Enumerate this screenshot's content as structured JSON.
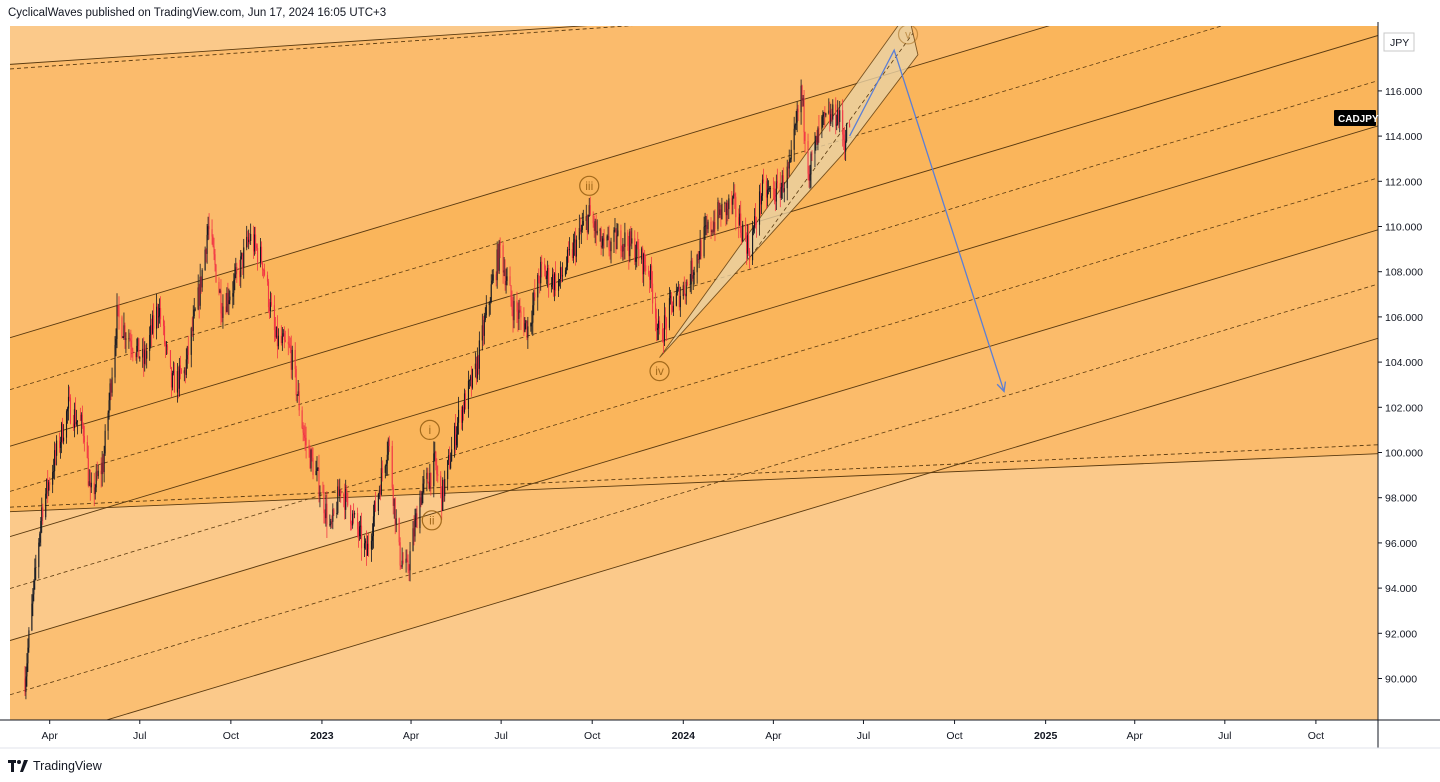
{
  "header": {
    "publisher_line": "CyclicalWaves published on TradingView.com, Jun 17, 2024 16:05 UTC+3"
  },
  "footer": {
    "brand": "TradingView",
    "logo_icon": "tradingview-logo-icon"
  },
  "colors": {
    "band_light": "#fbc98a",
    "band_mid": "#fbbb6a",
    "band_dark": "#f9b04f",
    "channel_fill": "#ead2a4",
    "line": "#5a3a10",
    "bull": "#131722",
    "bear": "#f23645",
    "arrow": "#5b7fd6",
    "wave_circle": "#a36a1c"
  },
  "chart_data": {
    "type": "candlestick",
    "symbol": "CADJPY",
    "currency_label": "JPY",
    "ylim": [
      88,
      120
    ],
    "y_ticks": [
      90,
      92,
      94,
      96,
      98,
      100,
      102,
      104,
      106,
      108,
      110,
      112,
      114,
      116
    ],
    "x_ticks": [
      {
        "label": "Apr",
        "date": "2022-04-01",
        "bold": false
      },
      {
        "label": "Jul",
        "date": "2022-07-01",
        "bold": false
      },
      {
        "label": "Oct",
        "date": "2022-10-01",
        "bold": false
      },
      {
        "label": "2023",
        "date": "2023-01-01",
        "bold": true
      },
      {
        "label": "Apr",
        "date": "2023-04-01",
        "bold": false
      },
      {
        "label": "Jul",
        "date": "2023-07-01",
        "bold": false
      },
      {
        "label": "Oct",
        "date": "2023-10-01",
        "bold": false
      },
      {
        "label": "2024",
        "date": "2024-01-01",
        "bold": true
      },
      {
        "label": "Apr",
        "date": "2024-04-01",
        "bold": false
      },
      {
        "label": "Jul",
        "date": "2024-07-01",
        "bold": false
      },
      {
        "label": "Oct",
        "date": "2024-10-01",
        "bold": false
      },
      {
        "label": "2025",
        "date": "2025-01-01",
        "bold": true
      },
      {
        "label": "Apr",
        "date": "2025-04-01",
        "bold": false
      },
      {
        "label": "Jul",
        "date": "2025-07-01",
        "bold": false
      },
      {
        "label": "Oct",
        "date": "2025-10-01",
        "bold": false
      }
    ],
    "grid": false,
    "last_price": 114.6,
    "price_path": [
      [
        "2022-03-07",
        90.0
      ],
      [
        "2022-03-15",
        93.5
      ],
      [
        "2022-03-24",
        97.5
      ],
      [
        "2022-04-05",
        99.5
      ],
      [
        "2022-04-20",
        102.0
      ],
      [
        "2022-05-06",
        101.0
      ],
      [
        "2022-05-12",
        98.0
      ],
      [
        "2022-05-25",
        99.5
      ],
      [
        "2022-06-08",
        106.0
      ],
      [
        "2022-06-22",
        105.0
      ],
      [
        "2022-07-05",
        104.0
      ],
      [
        "2022-07-20",
        106.5
      ],
      [
        "2022-08-02",
        103.0
      ],
      [
        "2022-08-15",
        103.5
      ],
      [
        "2022-08-30",
        107.0
      ],
      [
        "2022-09-08",
        110.0
      ],
      [
        "2022-09-22",
        106.5
      ],
      [
        "2022-10-05",
        107.5
      ],
      [
        "2022-10-20",
        109.5
      ],
      [
        "2022-11-02",
        108.5
      ],
      [
        "2022-11-15",
        105.0
      ],
      [
        "2022-11-30",
        104.5
      ],
      [
        "2022-12-15",
        100.5
      ],
      [
        "2022-12-30",
        98.5
      ],
      [
        "2023-01-10",
        96.5
      ],
      [
        "2023-01-20",
        98.5
      ],
      [
        "2023-02-02",
        97.0
      ],
      [
        "2023-02-15",
        95.5
      ],
      [
        "2023-02-28",
        98.5
      ],
      [
        "2023-03-09",
        100.5
      ],
      [
        "2023-03-20",
        95.5
      ],
      [
        "2023-03-28",
        94.7
      ],
      [
        "2023-04-10",
        98.0
      ],
      [
        "2023-04-25",
        99.5
      ],
      [
        "2023-05-02",
        98.0
      ],
      [
        "2023-05-19",
        101.5
      ],
      [
        "2023-06-05",
        103.5
      ],
      [
        "2023-06-20",
        107.0
      ],
      [
        "2023-06-30",
        109.0
      ],
      [
        "2023-07-12",
        106.5
      ],
      [
        "2023-07-28",
        105.5
      ],
      [
        "2023-08-10",
        108.0
      ],
      [
        "2023-08-28",
        107.5
      ],
      [
        "2023-09-12",
        109.0
      ],
      [
        "2023-09-28",
        110.5
      ],
      [
        "2023-10-12",
        109.0
      ],
      [
        "2023-10-31",
        109.5
      ],
      [
        "2023-11-13",
        109.0
      ],
      [
        "2023-11-28",
        108.0
      ],
      [
        "2023-12-08",
        105.0
      ],
      [
        "2023-12-20",
        106.5
      ],
      [
        "2024-01-05",
        107.5
      ],
      [
        "2024-01-22",
        109.5
      ],
      [
        "2024-02-05",
        110.5
      ],
      [
        "2024-02-20",
        111.0
      ],
      [
        "2024-03-08",
        109.0
      ],
      [
        "2024-03-20",
        111.5
      ],
      [
        "2024-04-05",
        111.5
      ],
      [
        "2024-04-18",
        112.5
      ],
      [
        "2024-04-29",
        116.0
      ],
      [
        "2024-05-07",
        112.5
      ],
      [
        "2024-05-20",
        114.5
      ],
      [
        "2024-06-05",
        115.0
      ],
      [
        "2024-06-12",
        113.8
      ],
      [
        "2024-06-17",
        114.6
      ]
    ],
    "channels": {
      "slope_per_year": 4.8,
      "solid_lines": [
        {
          "date": "2022-03-01",
          "value": 105.2
        },
        {
          "date": "2022-03-01",
          "value": 100.4
        },
        {
          "date": "2022-03-01",
          "value": 96.4
        },
        {
          "date": "2022-03-01",
          "value": 91.8
        },
        {
          "date": "2022-03-01",
          "value": 87.0
        }
      ],
      "dashed_lines": [
        {
          "date": "2022-03-01",
          "value": 102.9
        },
        {
          "date": "2022-03-01",
          "value": 98.4
        },
        {
          "date": "2022-03-01",
          "value": 94.1
        },
        {
          "date": "2022-03-01",
          "value": 89.4
        }
      ],
      "top_lines": [
        {
          "style": "solid",
          "points": [
            [
              "2022-03-01",
              117.2
            ],
            [
              "2024-04-20",
              119.5
            ]
          ]
        },
        {
          "style": "dashed",
          "points": [
            [
              "2022-03-01",
              117.0
            ],
            [
              "2024-06-30",
              119.6
            ]
          ]
        }
      ],
      "bottom_lines": [
        {
          "style": "solid",
          "points": [
            [
              "2022-03-01",
              97.4
            ],
            [
              "2026-01-01",
              100.0
            ]
          ]
        },
        {
          "style": "dashed",
          "points": [
            [
              "2022-03-01",
              97.6
            ],
            [
              "2026-01-01",
              100.4
            ]
          ]
        }
      ]
    },
    "rising_channel": [
      [
        "2023-12-08",
        104.2
      ],
      [
        "2024-08-15",
        119.5
      ],
      [
        "2024-08-25",
        117.6
      ],
      [
        "2024-06-10",
        113.2
      ]
    ],
    "projection_arrow": [
      [
        "2024-06-17",
        114.0
      ],
      [
        "2024-08-01",
        117.8
      ],
      [
        "2024-11-20",
        102.7
      ]
    ],
    "wave_labels": [
      {
        "label": "i",
        "date": "2023-04-20",
        "value": 101.0
      },
      {
        "label": "ii",
        "date": "2023-04-22",
        "value": 97.0
      },
      {
        "label": "iii",
        "date": "2023-09-28",
        "value": 111.8
      },
      {
        "label": "iv",
        "date": "2023-12-08",
        "value": 103.6
      },
      {
        "label": "v",
        "date": "2024-08-15",
        "value": 118.5
      }
    ]
  }
}
